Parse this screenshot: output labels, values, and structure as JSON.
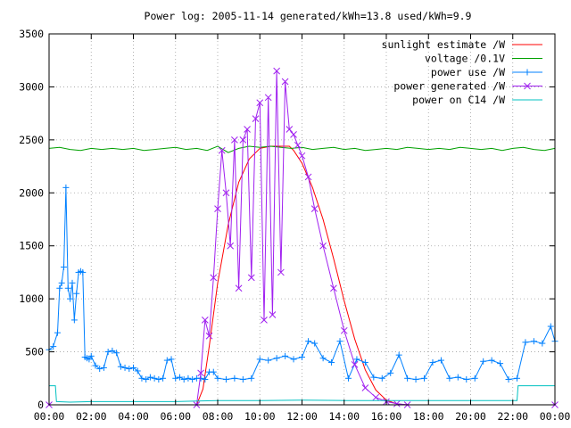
{
  "chart_data": {
    "type": "line",
    "title": "Power log: 2005-11-14 generated/kWh=13.8 used/kWh=9.9",
    "xlabel": "",
    "ylabel": "",
    "xlim": [
      0,
      24
    ],
    "ylim": [
      0,
      3500
    ],
    "x_ticks": [
      "00:00",
      "02:00",
      "04:00",
      "06:00",
      "08:00",
      "10:00",
      "12:00",
      "14:00",
      "16:00",
      "18:00",
      "20:00",
      "22:00",
      "00:00"
    ],
    "y_ticks": [
      "0",
      "500",
      "1000",
      "1500",
      "2000",
      "2500",
      "3000",
      "3500"
    ],
    "grid": true,
    "legend_position": "top-right",
    "series": [
      {
        "name": "sunlight estimate /W",
        "color": "#ff0000",
        "marker": "none",
        "x": [
          0,
          7.0,
          7.3,
          7.6,
          8.0,
          8.5,
          9.0,
          9.5,
          10.0,
          10.5,
          11.0,
          11.4,
          11.6,
          12.0,
          12.5,
          13.0,
          13.5,
          14.0,
          14.5,
          15.0,
          15.5,
          16.0,
          16.5,
          17.0,
          24
        ],
        "y": [
          0,
          0,
          150,
          550,
          1150,
          1700,
          2100,
          2320,
          2420,
          2440,
          2440,
          2440,
          2400,
          2280,
          2050,
          1750,
          1380,
          980,
          620,
          330,
          140,
          45,
          8,
          0,
          0
        ]
      },
      {
        "name": "voltage /0.1V",
        "color": "#00a000",
        "marker": "none",
        "x": [
          0,
          0.5,
          1,
          1.5,
          2,
          2.5,
          3,
          3.5,
          4,
          4.5,
          5,
          5.5,
          6,
          6.5,
          7,
          7.5,
          8,
          8.5,
          9,
          9.5,
          10,
          10.5,
          11,
          11.5,
          12,
          12.5,
          13,
          13.5,
          14,
          14.5,
          15,
          15.5,
          16,
          16.5,
          17,
          17.5,
          18,
          18.5,
          19,
          19.5,
          20,
          20.5,
          21,
          21.5,
          22,
          22.5,
          23,
          23.5,
          24
        ],
        "y": [
          2420,
          2430,
          2410,
          2400,
          2420,
          2410,
          2420,
          2410,
          2420,
          2400,
          2410,
          2420,
          2430,
          2410,
          2420,
          2400,
          2440,
          2380,
          2420,
          2440,
          2430,
          2440,
          2430,
          2420,
          2430,
          2410,
          2420,
          2430,
          2410,
          2420,
          2400,
          2410,
          2420,
          2410,
          2430,
          2420,
          2410,
          2420,
          2410,
          2430,
          2420,
          2410,
          2420,
          2400,
          2420,
          2430,
          2410,
          2400,
          2420
        ]
      },
      {
        "name": "power use /W",
        "color": "#0080ff",
        "marker": "plus",
        "x": [
          0.0,
          0.2,
          0.4,
          0.5,
          0.6,
          0.7,
          0.8,
          0.9,
          1.0,
          1.1,
          1.2,
          1.3,
          1.4,
          1.5,
          1.6,
          1.7,
          1.8,
          1.9,
          2.0,
          2.2,
          2.4,
          2.6,
          2.8,
          3.0,
          3.2,
          3.4,
          3.6,
          3.8,
          4.0,
          4.2,
          4.4,
          4.6,
          4.8,
          5.0,
          5.2,
          5.4,
          5.6,
          5.8,
          6.0,
          6.2,
          6.4,
          6.6,
          6.8,
          7.0,
          7.2,
          7.4,
          7.6,
          7.8,
          8.0,
          8.4,
          8.8,
          9.2,
          9.6,
          10.0,
          10.4,
          10.8,
          11.2,
          11.6,
          12.0,
          12.3,
          12.6,
          13.0,
          13.4,
          13.8,
          14.2,
          14.6,
          15.0,
          15.4,
          15.8,
          16.2,
          16.6,
          17.0,
          17.4,
          17.8,
          18.2,
          18.6,
          19.0,
          19.4,
          19.8,
          20.2,
          20.6,
          21.0,
          21.4,
          21.8,
          22.2,
          22.6,
          23.0,
          23.4,
          23.8,
          24.0
        ],
        "y": [
          520,
          550,
          680,
          1100,
          1150,
          1300,
          2050,
          1100,
          1000,
          1150,
          800,
          1050,
          1250,
          1260,
          1250,
          450,
          440,
          430,
          460,
          370,
          340,
          350,
          500,
          510,
          490,
          360,
          350,
          340,
          350,
          320,
          250,
          240,
          260,
          250,
          240,
          250,
          420,
          430,
          250,
          260,
          240,
          250,
          240,
          250,
          250,
          240,
          310,
          310,
          250,
          240,
          250,
          240,
          250,
          430,
          420,
          440,
          460,
          430,
          450,
          600,
          580,
          440,
          400,
          600,
          250,
          430,
          400,
          260,
          250,
          300,
          470,
          250,
          240,
          250,
          400,
          420,
          250,
          260,
          240,
          250,
          410,
          420,
          390,
          240,
          250,
          590,
          600,
          580,
          740,
          600
        ]
      },
      {
        "name": "power generated /W",
        "color": "#a020f0",
        "marker": "cross",
        "x": [
          0,
          7.0,
          7.2,
          7.4,
          7.6,
          7.8,
          8.0,
          8.2,
          8.4,
          8.6,
          8.8,
          9.0,
          9.2,
          9.4,
          9.6,
          9.8,
          10.0,
          10.2,
          10.4,
          10.6,
          10.8,
          11.0,
          11.2,
          11.4,
          11.6,
          11.8,
          12.0,
          12.3,
          12.6,
          13.0,
          13.5,
          14.0,
          14.5,
          15.0,
          15.5,
          16.0,
          16.5,
          17.0,
          24
        ],
        "y": [
          0,
          0,
          300,
          800,
          650,
          1200,
          1850,
          2400,
          2000,
          1500,
          2500,
          1100,
          2500,
          2600,
          1200,
          2700,
          2850,
          800,
          2900,
          850,
          3150,
          1250,
          3050,
          2600,
          2550,
          2450,
          2350,
          2150,
          1850,
          1500,
          1100,
          700,
          380,
          160,
          70,
          30,
          10,
          0,
          0
        ]
      },
      {
        "name": "power on C14 /W",
        "color": "#00c0c0",
        "marker": "none",
        "x": [
          0,
          0.3,
          0.35,
          1,
          2,
          4,
          6,
          7,
          8,
          10,
          12,
          14,
          16,
          18,
          20,
          22,
          22.2,
          22.25,
          24
        ],
        "y": [
          180,
          180,
          30,
          25,
          30,
          30,
          30,
          35,
          40,
          40,
          45,
          40,
          40,
          40,
          40,
          40,
          40,
          180,
          180
        ]
      }
    ]
  }
}
